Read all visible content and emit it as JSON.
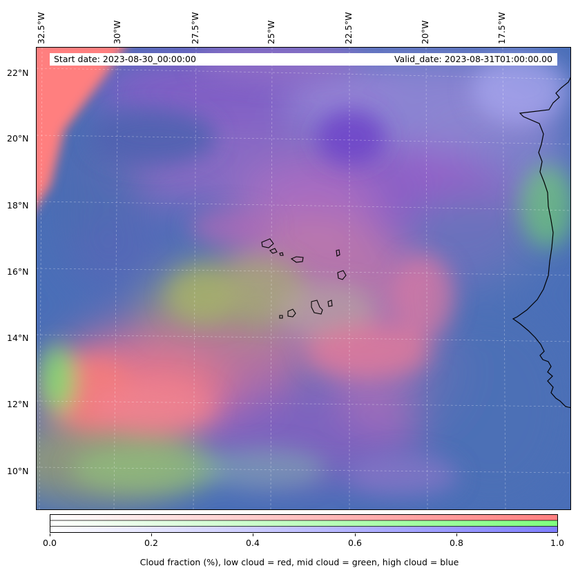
{
  "map": {
    "header": {
      "start_date": "Start date: 2023-08-30_00:00:00",
      "valid_date": "Valid_date: 2023-08-31T01:00:00.00"
    },
    "lon_labels": [
      "32.5°W",
      "30°W",
      "27.5°W",
      "25°W",
      "22.5°W",
      "20°W",
      "17.5°W"
    ],
    "lat_labels": [
      "22°N",
      "20°N",
      "18°N",
      "16°N",
      "14°N",
      "12°N",
      "10°N"
    ],
    "features": [
      "West African coastline",
      "Cape Verde islands"
    ],
    "colors": {
      "low_cloud": "#ff7f7f",
      "mid_cloud": "#7fff7f",
      "high_cloud": "#7f7fff",
      "base": "#4a70b8"
    }
  },
  "colorbar": {
    "ticks": [
      "0.0",
      "0.2",
      "0.4",
      "0.6",
      "0.8",
      "1.0"
    ],
    "label": "Cloud fraction (%), low cloud = red, mid cloud = green, high cloud = blue"
  }
}
